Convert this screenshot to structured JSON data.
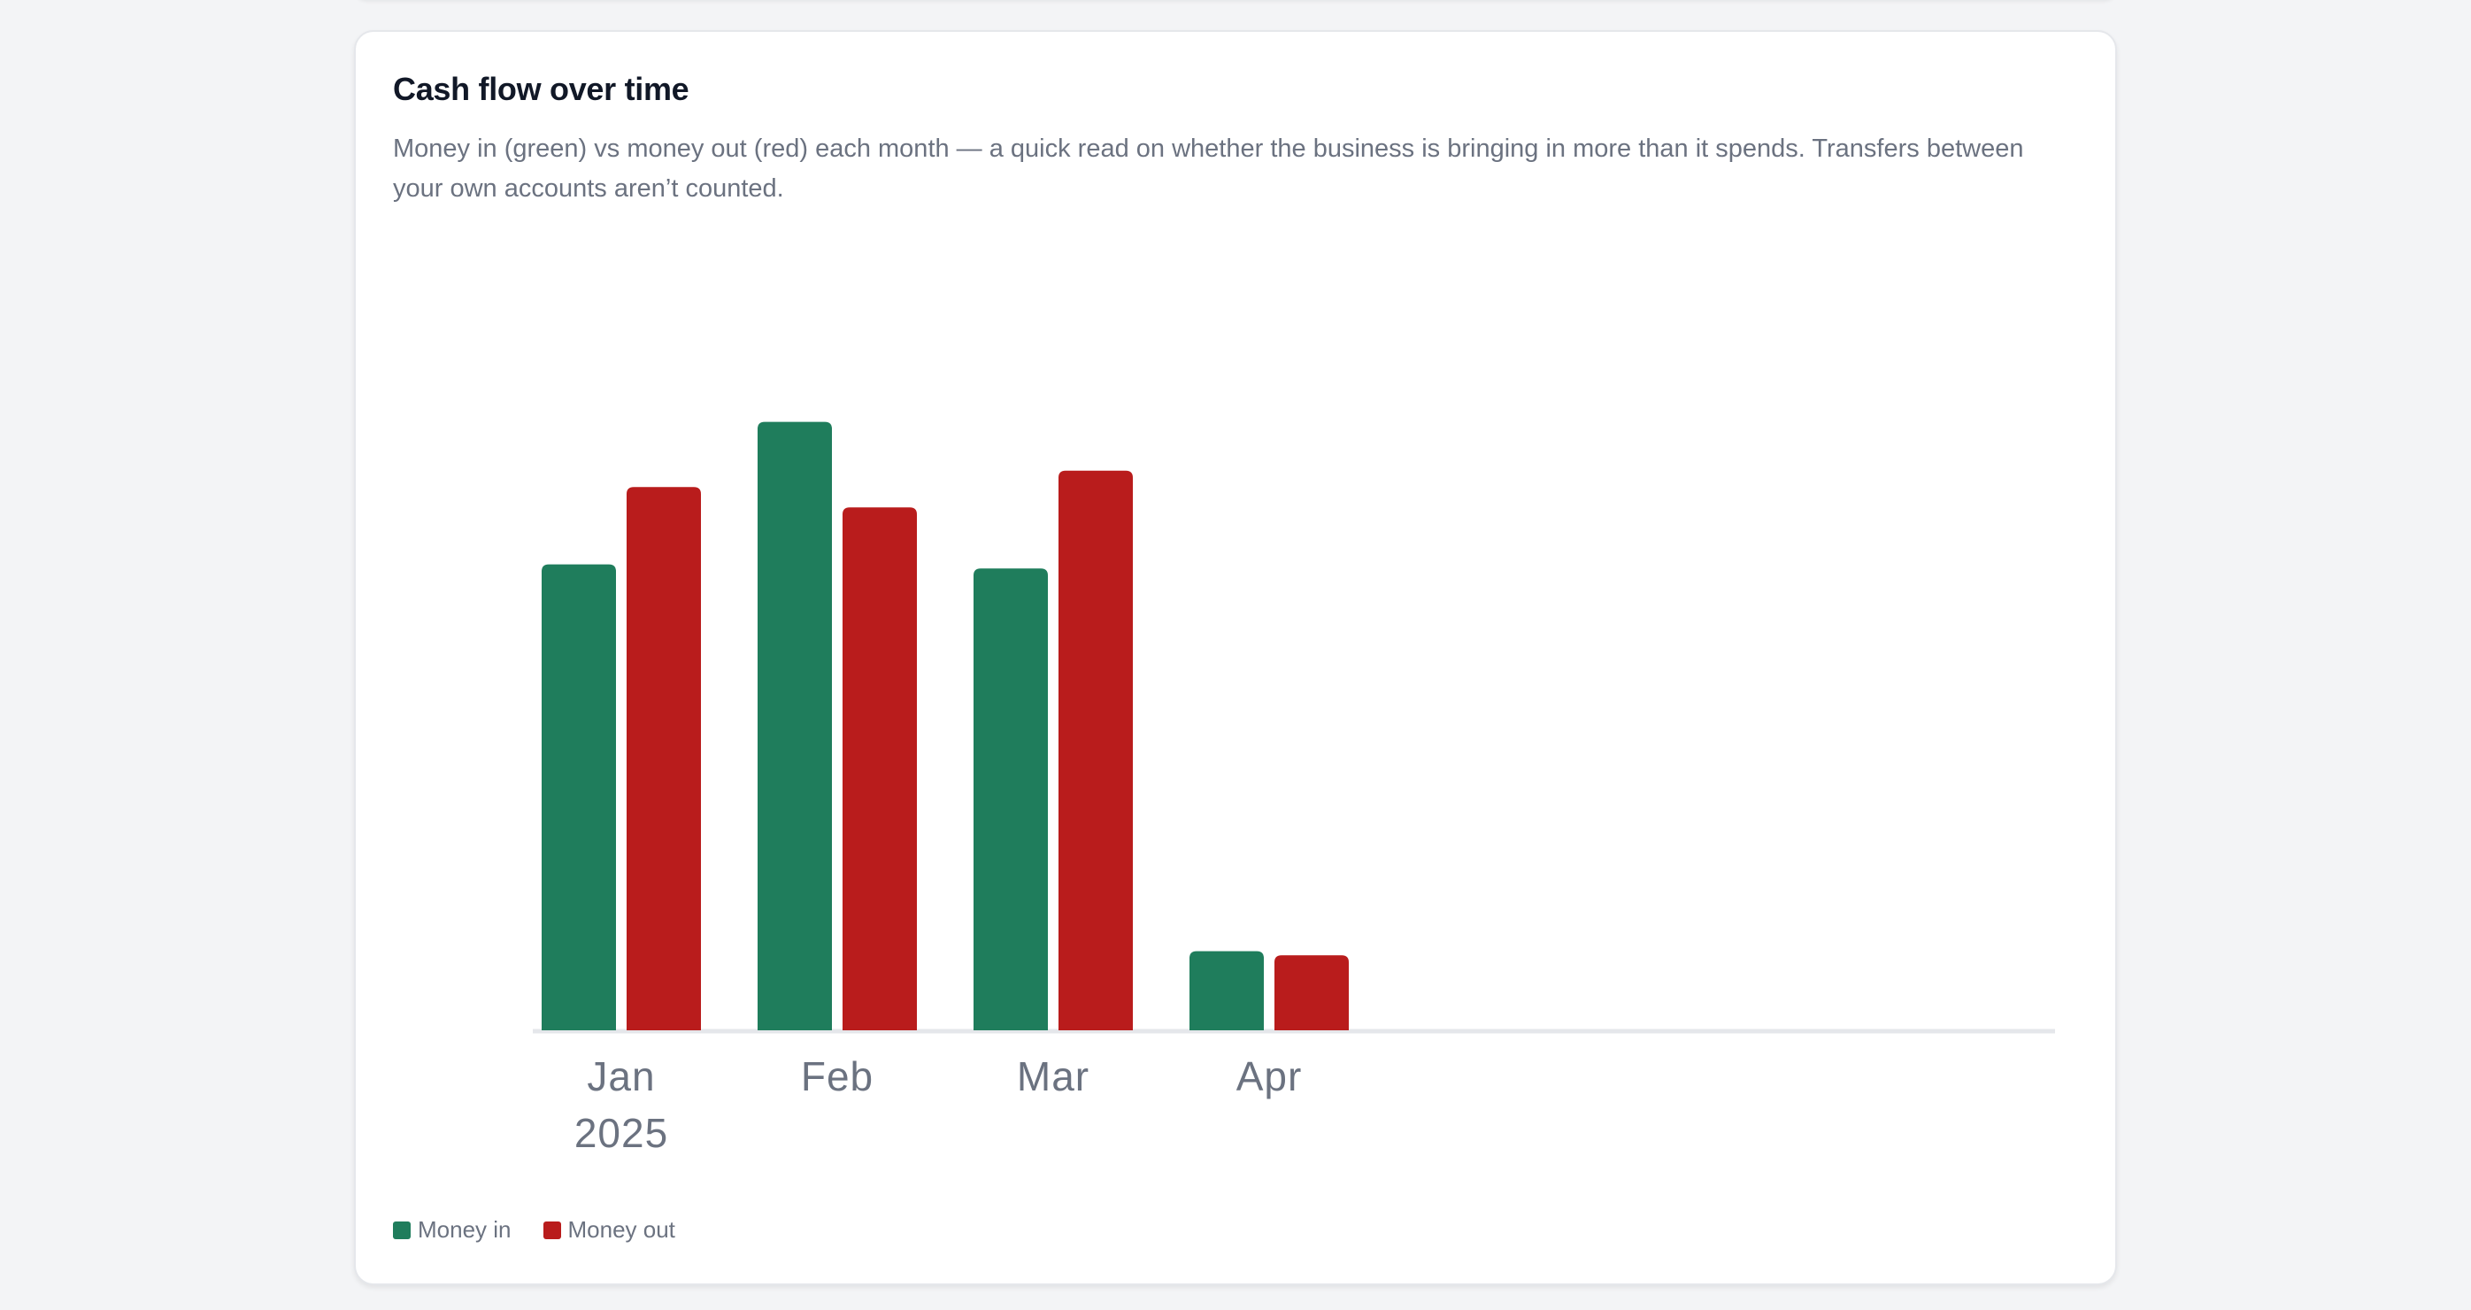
{
  "card": {
    "title": "Cash flow over time",
    "description": "Money in (green) vs money out (red) each month — a quick read on whether the business is bringing in more than it spends. Transfers between your own accounts aren’t counted."
  },
  "colors": {
    "money_in": "#1f7d5c",
    "money_out": "#b91c1c",
    "baseline": "#e5e7eb",
    "tick_label": "#6b7280"
  },
  "chart_data": {
    "type": "bar",
    "categories": [
      [
        "Jan",
        "2025"
      ],
      [
        "Feb"
      ],
      [
        "Mar"
      ],
      [
        "Apr"
      ]
    ],
    "series": [
      {
        "name": "Money in",
        "values": [
          5.7,
          7.45,
          5.65,
          0.95
        ]
      },
      {
        "name": "Money out",
        "values": [
          6.65,
          6.4,
          6.85,
          0.9
        ]
      }
    ],
    "ylim": [
      0,
      8
    ],
    "slots": 7,
    "grid": false,
    "legend": "bottom-left"
  },
  "legend": [
    {
      "label": "Money in",
      "color": "#1f7d5c"
    },
    {
      "label": "Money out",
      "color": "#b91c1c"
    }
  ]
}
